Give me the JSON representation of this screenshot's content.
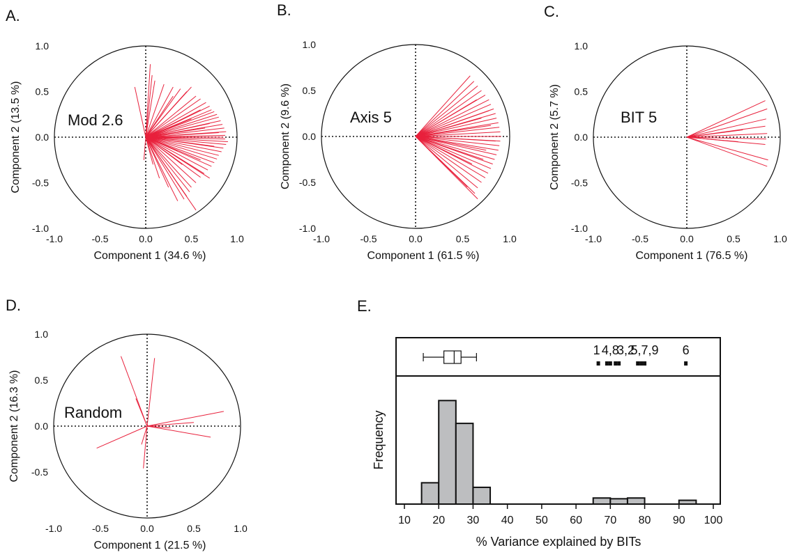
{
  "chart_data": [
    {
      "panel": "A.",
      "type": "loading-plot",
      "label": "Mod 2.6",
      "xlabel": "Component 1  (34.6 %)",
      "ylabel": "Component 2  (13.5 %)",
      "xlim": [
        -1.0,
        1.0
      ],
      "ylim": [
        -1.0,
        1.0
      ],
      "x_ticks": [
        "-1.0",
        "-0.5",
        "0.0",
        "0.5",
        "1.0"
      ],
      "y_ticks": [
        "1.0",
        "0.5",
        "0.0",
        "-0.5",
        "-1.0"
      ],
      "line_color": "#e8213c",
      "vectors": [
        [
          -0.12,
          0.55
        ],
        [
          0.05,
          0.8
        ],
        [
          0.07,
          0.68
        ],
        [
          0.1,
          0.62
        ],
        [
          0.2,
          0.58
        ],
        [
          0.3,
          0.55
        ],
        [
          0.38,
          0.53
        ],
        [
          0.45,
          0.5
        ],
        [
          0.5,
          0.55
        ],
        [
          0.55,
          0.45
        ],
        [
          0.6,
          0.42
        ],
        [
          0.66,
          0.38
        ],
        [
          0.7,
          0.34
        ],
        [
          0.72,
          0.3
        ],
        [
          0.75,
          0.28
        ],
        [
          0.78,
          0.25
        ],
        [
          0.8,
          0.22
        ],
        [
          0.82,
          0.18
        ],
        [
          0.84,
          0.14
        ],
        [
          0.86,
          0.1
        ],
        [
          0.88,
          0.06
        ],
        [
          0.87,
          0.02
        ],
        [
          0.85,
          0.0
        ],
        [
          0.87,
          -0.02
        ],
        [
          0.9,
          -0.05
        ],
        [
          0.88,
          -0.08
        ],
        [
          0.85,
          -0.12
        ],
        [
          0.83,
          -0.16
        ],
        [
          0.8,
          -0.2
        ],
        [
          0.78,
          -0.24
        ],
        [
          0.75,
          -0.28
        ],
        [
          0.72,
          -0.32
        ],
        [
          0.68,
          -0.36
        ],
        [
          0.64,
          -0.4
        ],
        [
          0.6,
          -0.44
        ],
        [
          0.55,
          -0.5
        ],
        [
          0.5,
          -0.55
        ],
        [
          0.48,
          -0.6
        ],
        [
          0.45,
          -0.65
        ],
        [
          0.42,
          -0.68
        ],
        [
          0.35,
          -0.7
        ],
        [
          0.55,
          -0.8
        ],
        [
          0.25,
          -0.55
        ],
        [
          0.15,
          -0.45
        ],
        [
          0.08,
          -0.3
        ],
        [
          -0.02,
          -0.25
        ],
        [
          0.3,
          0.45
        ],
        [
          0.6,
          0.3
        ],
        [
          0.7,
          0.15
        ],
        [
          0.8,
          0.05
        ],
        [
          0.75,
          -0.1
        ],
        [
          0.6,
          -0.25
        ],
        [
          0.7,
          -0.45
        ],
        [
          0.5,
          0.2
        ],
        [
          0.4,
          -0.3
        ],
        [
          0.65,
          0.1
        ]
      ]
    },
    {
      "panel": "B.",
      "type": "loading-plot",
      "label": "Axis 5",
      "xlabel": "Component 1  (61.5 %)",
      "ylabel": "Component 2  (9.6 %)",
      "xlim": [
        -1.0,
        1.0
      ],
      "ylim": [
        -1.0,
        1.0
      ],
      "x_ticks": [
        "-1.0",
        "-0.5",
        "0.0",
        "0.5",
        "1.0"
      ],
      "y_ticks": [
        "1.0",
        "0.5",
        "0.0",
        "-0.5",
        "-1.0"
      ],
      "line_color": "#e8213c",
      "vectors": [
        [
          0.58,
          0.66
        ],
        [
          0.62,
          0.6
        ],
        [
          0.66,
          0.55
        ],
        [
          0.7,
          0.5
        ],
        [
          0.74,
          0.45
        ],
        [
          0.78,
          0.4
        ],
        [
          0.8,
          0.35
        ],
        [
          0.83,
          0.3
        ],
        [
          0.85,
          0.25
        ],
        [
          0.86,
          0.2
        ],
        [
          0.88,
          0.15
        ],
        [
          0.89,
          0.1
        ],
        [
          0.9,
          0.05
        ],
        [
          0.91,
          0.0
        ],
        [
          0.9,
          -0.05
        ],
        [
          0.89,
          -0.1
        ],
        [
          0.88,
          -0.15
        ],
        [
          0.86,
          -0.2
        ],
        [
          0.84,
          -0.25
        ],
        [
          0.82,
          -0.3
        ],
        [
          0.8,
          -0.35
        ],
        [
          0.77,
          -0.4
        ],
        [
          0.74,
          -0.45
        ],
        [
          0.7,
          -0.5
        ],
        [
          0.66,
          -0.56
        ],
        [
          0.63,
          -0.62
        ],
        [
          0.66,
          -0.68
        ],
        [
          0.55,
          -0.55
        ],
        [
          0.6,
          -0.3
        ],
        [
          0.7,
          0.2
        ],
        [
          0.75,
          -0.15
        ],
        [
          0.65,
          0.4
        ],
        [
          0.8,
          0.12
        ],
        [
          0.85,
          -0.05
        ],
        [
          0.78,
          0.28
        ],
        [
          0.72,
          -0.25
        ]
      ]
    },
    {
      "panel": "C.",
      "type": "loading-plot",
      "label": "BIT 5",
      "xlabel": "Component 1  (76.5 %)",
      "ylabel": "Component 2  (5.7 %)",
      "xlim": [
        -1.0,
        1.0
      ],
      "ylim": [
        -1.0,
        1.0
      ],
      "x_ticks": [
        "-1.0",
        "-0.5",
        "0.0",
        "0.5",
        "1.0"
      ],
      "y_ticks": [
        "1.0",
        "0.5",
        "0.0",
        "-0.5",
        "-1.0"
      ],
      "line_color": "#e8213c",
      "vectors": [
        [
          0.84,
          0.4
        ],
        [
          0.86,
          0.31
        ],
        [
          0.85,
          0.2
        ],
        [
          0.84,
          0.12
        ],
        [
          0.86,
          0.04
        ],
        [
          0.85,
          -0.02
        ],
        [
          0.84,
          -0.08
        ],
        [
          0.87,
          -0.25
        ],
        [
          0.86,
          -0.32
        ],
        [
          0.6,
          0.08
        ],
        [
          0.55,
          -0.05
        ]
      ]
    },
    {
      "panel": "D.",
      "type": "loading-plot",
      "label": "Random",
      "xlabel": "Component 1  (21.5 %)",
      "ylabel": "Component 2  (16.3 %)",
      "xlim": [
        -1.0,
        1.0
      ],
      "ylim": [
        -1.0,
        1.0
      ],
      "x_ticks": [
        "-1.0",
        "-0.5",
        "0.0",
        "0.5",
        "1.0"
      ],
      "y_ticks": [
        "1.0",
        "0.5",
        "0.0",
        "-0.5"
      ],
      "line_color": "#e8213c",
      "vectors": [
        [
          -0.28,
          0.76
        ],
        [
          0.08,
          0.74
        ],
        [
          -0.12,
          0.3
        ],
        [
          0.82,
          0.16
        ],
        [
          0.68,
          -0.12
        ],
        [
          -0.54,
          -0.24
        ],
        [
          -0.06,
          -0.2
        ],
        [
          -0.04,
          -0.46
        ],
        [
          0.5,
          0.04
        ],
        [
          0.25,
          -0.02
        ]
      ]
    },
    {
      "panel": "E.",
      "type": "bar",
      "subtype": "histogram",
      "xlabel": "% Variance explained by BITs",
      "ylabel": "Frequency",
      "xlim": [
        10,
        100
      ],
      "x_ticks": [
        "10",
        "20",
        "30",
        "40",
        "50",
        "60",
        "70",
        "80",
        "90",
        "100"
      ],
      "bar_color": "#bdbec0",
      "bins": [
        {
          "from": 15,
          "to": 20,
          "count": 14
        },
        {
          "from": 20,
          "to": 25,
          "count": 68
        },
        {
          "from": 25,
          "to": 30,
          "count": 53
        },
        {
          "from": 30,
          "to": 35,
          "count": 11
        },
        {
          "from": 65,
          "to": 70,
          "count": 4
        },
        {
          "from": 70,
          "to": 75,
          "count": 3.5
        },
        {
          "from": 75,
          "to": 80,
          "count": 4
        },
        {
          "from": 90,
          "to": 95,
          "count": 2.5
        }
      ],
      "count_max": 75,
      "boxplot": {
        "min": 15.5,
        "q1": 21.5,
        "median": 24.5,
        "q3": 26.5,
        "max": 31
      },
      "bit_marks": [
        66.5,
        69,
        70,
        71.5,
        72.5,
        78,
        79,
        80,
        92
      ],
      "bit_labels": [
        {
          "text": "1",
          "x": 66
        },
        {
          "text": "4,8",
          "x": 70
        },
        {
          "text": "3,2",
          "x": 74.5
        },
        {
          "text": "5,7,9",
          "x": 80
        },
        {
          "text": "6",
          "x": 92
        }
      ]
    }
  ]
}
